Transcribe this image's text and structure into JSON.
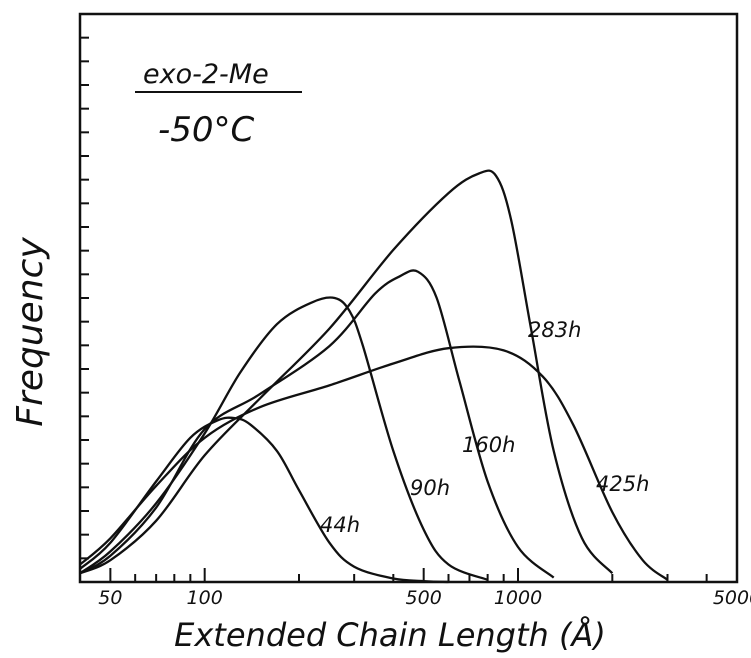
{
  "chart_data": {
    "type": "line",
    "title": "exo-2-Me",
    "subtitle": "-50°C",
    "xlabel": "Extended Chain Length (Å)",
    "ylabel": "Frequency",
    "x_scale": "log",
    "xlim": [
      40,
      5000
    ],
    "ylim": [
      0,
      13
    ],
    "x_ticks": [
      50,
      100,
      500,
      1000,
      5000
    ],
    "x_tick_labels": [
      "50",
      "100",
      "500",
      "1000",
      "5000"
    ],
    "y_tick_count": 23,
    "grid": false,
    "legend": "none",
    "series": [
      {
        "name": "44h",
        "x": [
          40,
          50,
          70,
          90,
          110,
          125,
          140,
          170,
          200,
          250,
          300,
          400,
          500,
          600
        ],
        "y": [
          0.3,
          0.9,
          2.3,
          3.3,
          3.7,
          3.75,
          3.6,
          3.0,
          2.1,
          0.9,
          0.35,
          0.08,
          0.02,
          0
        ]
      },
      {
        "name": "90h",
        "x": [
          40,
          50,
          70,
          100,
          130,
          170,
          220,
          260,
          290,
          320,
          400,
          500,
          600,
          800
        ],
        "y": [
          0.2,
          0.7,
          1.8,
          3.4,
          4.8,
          5.9,
          6.4,
          6.5,
          6.2,
          5.4,
          3.0,
          1.2,
          0.4,
          0.05
        ]
      },
      {
        "name": "160h",
        "x": [
          40,
          50,
          70,
          100,
          150,
          250,
          350,
          420,
          480,
          550,
          650,
          800,
          1000,
          1300
        ],
        "y": [
          0.2,
          0.6,
          1.7,
          3.5,
          4.3,
          5.4,
          6.6,
          7.0,
          7.1,
          6.5,
          4.6,
          2.3,
          0.8,
          0.1
        ]
      },
      {
        "name": "283h",
        "x": [
          40,
          50,
          70,
          100,
          150,
          250,
          400,
          600,
          750,
          850,
          950,
          1100,
          1300,
          1600,
          2000
        ],
        "y": [
          0.2,
          0.5,
          1.4,
          2.9,
          4.2,
          5.8,
          7.6,
          8.9,
          9.35,
          9.3,
          8.3,
          5.8,
          3.0,
          1.0,
          0.2
        ]
      },
      {
        "name": "425h",
        "x": [
          40,
          50,
          70,
          100,
          150,
          250,
          400,
          600,
          900,
          1200,
          1500,
          2000,
          2500,
          3000
        ],
        "y": [
          0.4,
          1.0,
          2.2,
          3.3,
          4.0,
          4.5,
          5.0,
          5.35,
          5.3,
          4.7,
          3.6,
          1.6,
          0.5,
          0.05
        ]
      }
    ]
  }
}
